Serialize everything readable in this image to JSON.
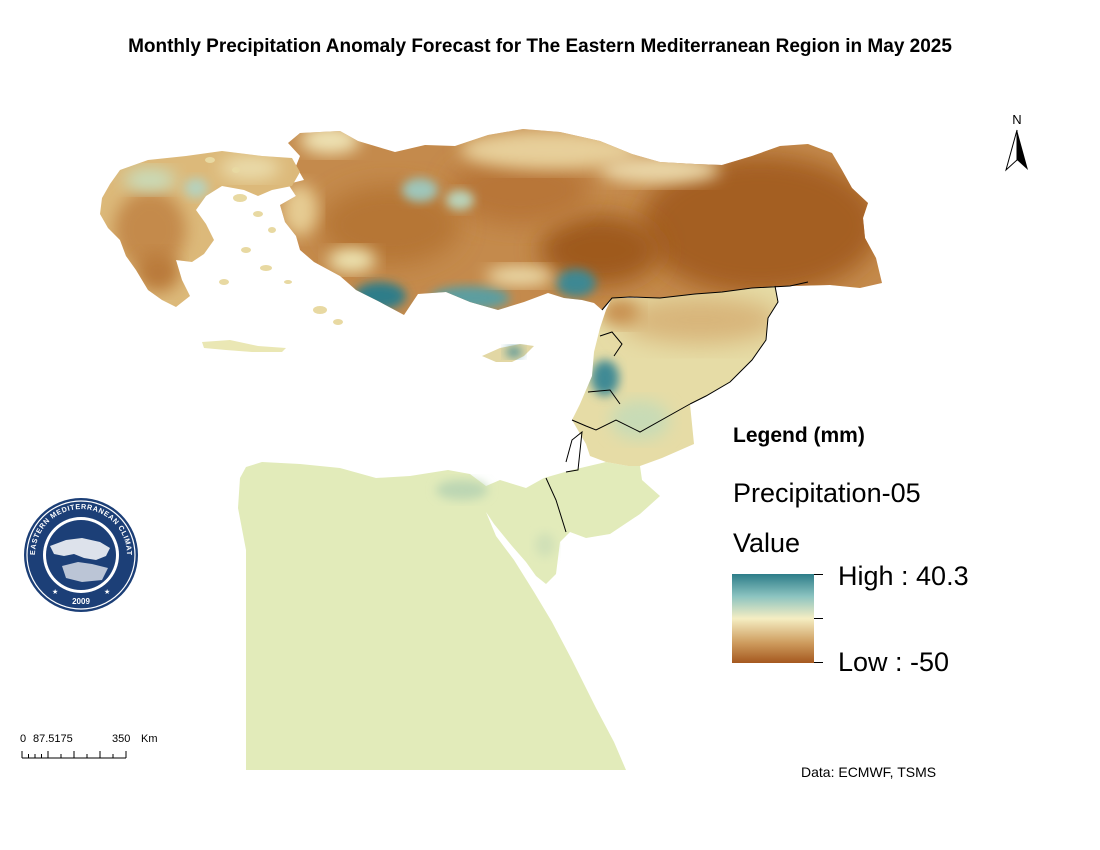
{
  "title": "Monthly Precipitation Anomaly Forecast for The Eastern Mediterranean Region in May 2025",
  "north_arrow": {
    "label": "N"
  },
  "legend": {
    "title": "Legend (mm)",
    "layer": "Precipitation-05",
    "field": "Value",
    "high_label": "High : 40.3",
    "low_label": "Low : -50",
    "high_value": 40.3,
    "low_value": -50,
    "colors": {
      "high": "#2d7d89",
      "mid": "#f5eec3",
      "low": "#a5581f"
    }
  },
  "scale_bar": {
    "labels": [
      "0",
      "87.5175",
      "350",
      "Km"
    ]
  },
  "logo": {
    "text": "EASTERN MEDITERRANEAN CLIMATE CENTRE",
    "year": "2009"
  },
  "credit": "Data: ECMWF, TSMS"
}
